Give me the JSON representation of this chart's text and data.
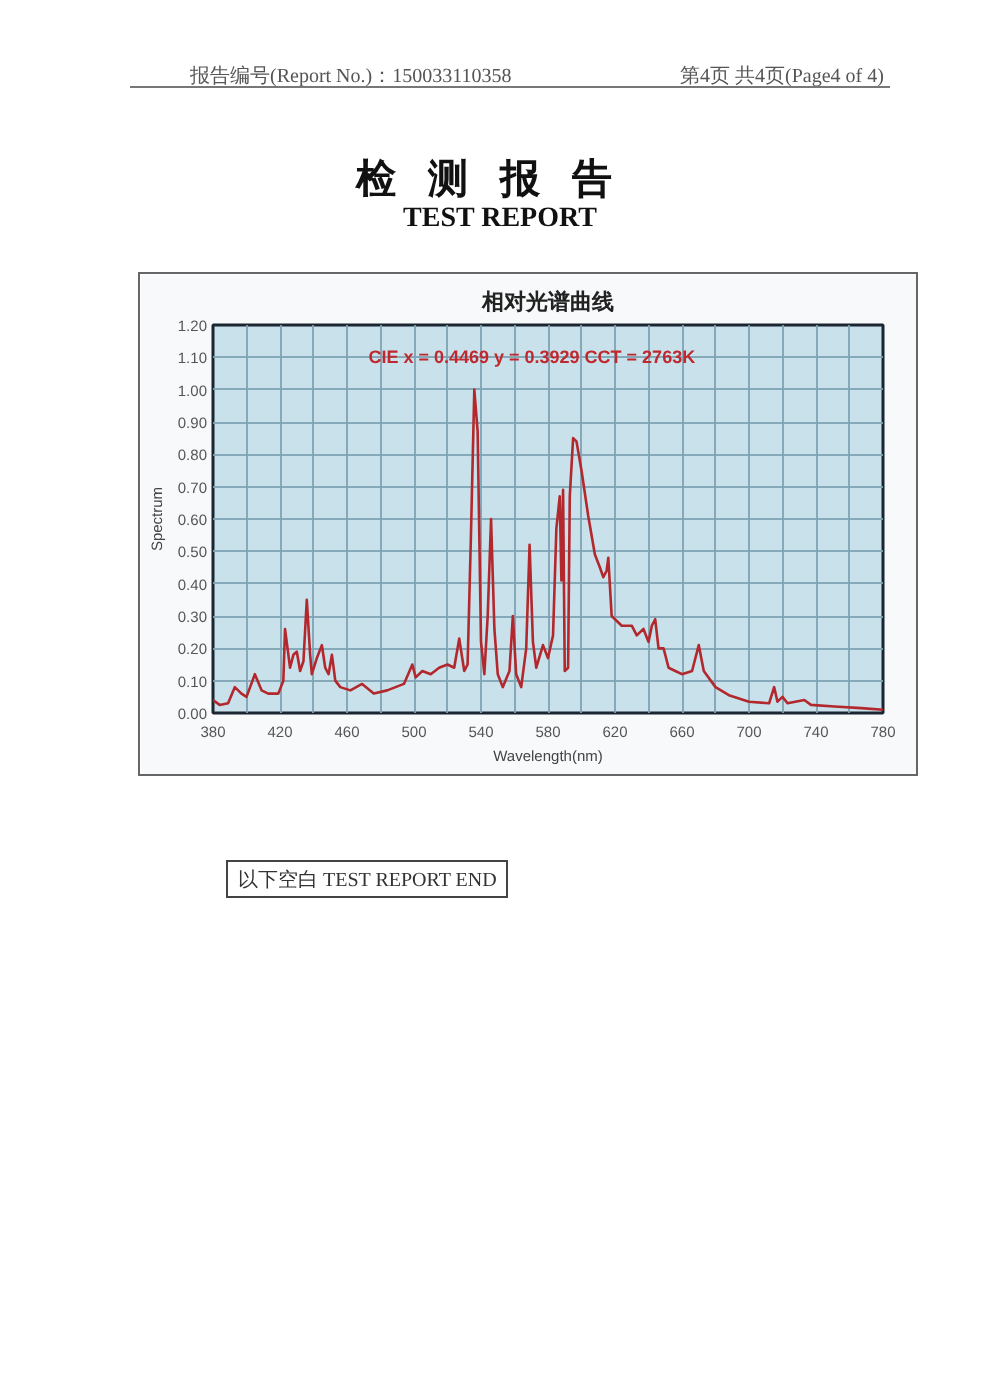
{
  "chart_data": {
    "type": "line",
    "title": "相对光谱曲线",
    "xlabel": "Wavelength(nm)",
    "ylabel": "Spectrum",
    "annotations": [
      "报告编号(Report No.)：150033110358",
      "第4页 共4页(Page4 of 4)",
      "检测报告",
      "TEST REPORT",
      "CIE x = 0.4469 y = 0.3929 CCT = 2763K",
      "以下空白 TEST REPORT END"
    ],
    "x": [
      380,
      384,
      389,
      393,
      397,
      400,
      405,
      409,
      413,
      419,
      422,
      423,
      426,
      428,
      430,
      432,
      434,
      436,
      438,
      439,
      442,
      445,
      447,
      449,
      451,
      453,
      456,
      462,
      469,
      476,
      484,
      494,
      499,
      501,
      505,
      510,
      515,
      520,
      524,
      527,
      530,
      532,
      534,
      536,
      538,
      540,
      542,
      544,
      546,
      548,
      550,
      553,
      557,
      559,
      561,
      564,
      567,
      569,
      571,
      573,
      577,
      580,
      583,
      585,
      587,
      588,
      589,
      590,
      592,
      593,
      595,
      597,
      600,
      604,
      608,
      611,
      613,
      615,
      616,
      618,
      620,
      624,
      630,
      633,
      637,
      640,
      642,
      644,
      646,
      649,
      652,
      656,
      660,
      666,
      670,
      673,
      680,
      688,
      700,
      712,
      715,
      717,
      720,
      723,
      733,
      737,
      751,
      767,
      780
    ],
    "series": [
      {
        "color": "#b3282d",
        "values": [
          0.04,
          0.025,
          0.03,
          0.08,
          0.06,
          0.05,
          0.12,
          0.07,
          0.06,
          0.06,
          0.1,
          0.26,
          0.14,
          0.18,
          0.19,
          0.13,
          0.16,
          0.35,
          0.18,
          0.12,
          0.17,
          0.21,
          0.14,
          0.12,
          0.18,
          0.1,
          0.08,
          0.07,
          0.09,
          0.06,
          0.07,
          0.09,
          0.15,
          0.11,
          0.13,
          0.12,
          0.14,
          0.15,
          0.14,
          0.23,
          0.13,
          0.15,
          0.55,
          1.0,
          0.87,
          0.22,
          0.12,
          0.3,
          0.6,
          0.26,
          0.12,
          0.08,
          0.13,
          0.3,
          0.12,
          0.08,
          0.2,
          0.52,
          0.22,
          0.14,
          0.21,
          0.17,
          0.24,
          0.57,
          0.67,
          0.41,
          0.69,
          0.13,
          0.14,
          0.67,
          0.85,
          0.84,
          0.75,
          0.61,
          0.49,
          0.45,
          0.42,
          0.44,
          0.48,
          0.3,
          0.29,
          0.27,
          0.27,
          0.24,
          0.26,
          0.22,
          0.27,
          0.29,
          0.2,
          0.2,
          0.14,
          0.13,
          0.12,
          0.13,
          0.21,
          0.13,
          0.08,
          0.055,
          0.035,
          0.03,
          0.08,
          0.035,
          0.05,
          0.03,
          0.04,
          0.025,
          0.02,
          0.015,
          0.01
        ]
      }
    ],
    "xlim": [
      380,
      780
    ],
    "xticks": [
      380,
      {
        "value": 400,
        "label": null
      },
      420,
      {
        "value": 440,
        "label": null
      },
      460,
      {
        "value": 480,
        "label": null
      },
      500,
      {
        "value": 520,
        "label": null
      },
      540,
      {
        "value": 560,
        "label": null
      },
      580,
      {
        "value": 600,
        "label": null
      },
      620,
      {
        "value": 640,
        "label": null
      },
      660,
      {
        "value": 680,
        "label": null
      },
      700,
      {
        "value": 720,
        "label": null
      },
      740,
      {
        "value": 760,
        "label": null
      },
      780
    ],
    "ylim": [
      0,
      1.2
    ],
    "yticks": [
      {
        "value": 0,
        "label": "0.00"
      },
      {
        "value": 0.1,
        "label": "0.10"
      },
      {
        "value": 0.2,
        "label": "0.20"
      },
      {
        "value": 0.3,
        "label": "0.30"
      },
      {
        "value": 0.4,
        "label": "0.40"
      },
      {
        "value": 0.5,
        "label": "0.50"
      },
      {
        "value": 0.6,
        "label": "0.60"
      },
      {
        "value": 0.7,
        "label": "0.70"
      },
      {
        "value": 0.8,
        "label": "0.80"
      },
      {
        "value": 0.9,
        "label": "0.90"
      },
      {
        "value": 1.0,
        "label": "1.00"
      },
      {
        "value": 1.1,
        "label": "1.10"
      },
      {
        "value": 1.2,
        "label": "1.20"
      }
    ],
    "grid": true
  }
}
